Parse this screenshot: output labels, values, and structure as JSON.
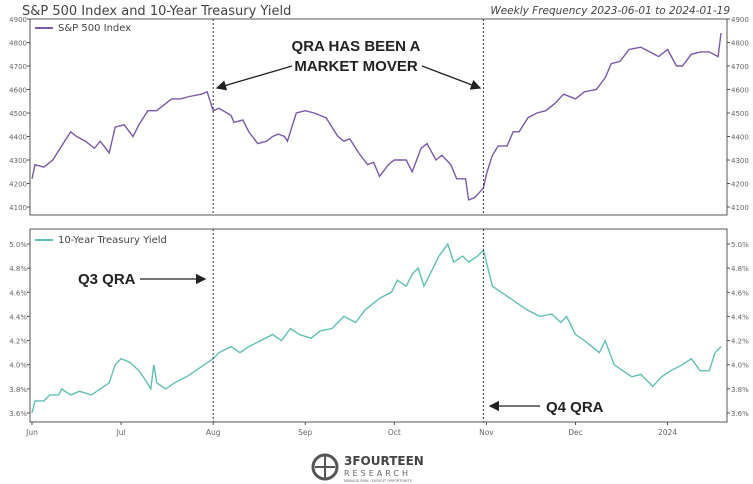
{
  "chart_data": [
    {
      "type": "line",
      "title": "S&P 500 Index and 10-Year Treasury Yield",
      "subtitle": "Weekly Frequency 2023-06-01 to 2024-01-19",
      "x_unit": "days since 2023-06-01",
      "ylim": [
        4100,
        4900
      ],
      "yticks": [
        "4100",
        "4200",
        "4300",
        "4400",
        "4500",
        "4600",
        "4700",
        "4800",
        "4900"
      ],
      "legend": "top-left",
      "series": [
        {
          "name": "S&P 500 Index",
          "color": "#7b58a8",
          "x": [
            0,
            1,
            4,
            7,
            9,
            13,
            15,
            18,
            21,
            23,
            26,
            28,
            31,
            34,
            36,
            39,
            42,
            45,
            47,
            50,
            53,
            57,
            59,
            61,
            63,
            67,
            68,
            71,
            73,
            76,
            79,
            81,
            83,
            85,
            86,
            89,
            92,
            95,
            99,
            100,
            103,
            105,
            107,
            110,
            113,
            115,
            117,
            120,
            122,
            126,
            128,
            131,
            133,
            136,
            138,
            141,
            143,
            146,
            147,
            149,
            152,
            153,
            155,
            157,
            160,
            162,
            164,
            167,
            170,
            173,
            176,
            179,
            183,
            186,
            190,
            193,
            195,
            198,
            201,
            205,
            208,
            211,
            214,
            217,
            219,
            222,
            225,
            228,
            231,
            232
          ],
          "y": [
            4220,
            4280,
            4270,
            4300,
            4340,
            4420,
            4400,
            4380,
            4350,
            4380,
            4330,
            4440,
            4450,
            4400,
            4450,
            4510,
            4510,
            4540,
            4560,
            4560,
            4570,
            4580,
            4590,
            4510,
            4520,
            4490,
            4460,
            4470,
            4420,
            4370,
            4380,
            4400,
            4410,
            4400,
            4380,
            4500,
            4510,
            4500,
            4480,
            4460,
            4400,
            4380,
            4390,
            4330,
            4280,
            4290,
            4230,
            4280,
            4300,
            4300,
            4250,
            4350,
            4370,
            4300,
            4320,
            4280,
            4220,
            4220,
            4130,
            4140,
            4180,
            4240,
            4320,
            4360,
            4360,
            4420,
            4420,
            4480,
            4500,
            4510,
            4540,
            4580,
            4560,
            4590,
            4600,
            4650,
            4710,
            4720,
            4770,
            4780,
            4760,
            4740,
            4770,
            4700,
            4700,
            4750,
            4760,
            4760,
            4740,
            4840
          ]
        }
      ],
      "annotations": [
        "QRA HAS BEEN A",
        "MARKET MOVER"
      ]
    },
    {
      "type": "line",
      "xticks": [
        "Jun",
        "Jul",
        "Aug",
        "Sep",
        "Oct",
        "Nov",
        "Dec",
        "2024"
      ],
      "xtick_days": [
        0,
        30,
        61,
        92,
        122,
        153,
        183,
        214
      ],
      "x_unit": "days since 2023-06-01",
      "ylim": [
        3.6,
        5.0
      ],
      "yticks": [
        "3.6%",
        "3.8%",
        "4.0%",
        "4.2%",
        "4.4%",
        "4.6%",
        "4.8%",
        "5.0%"
      ],
      "legend": "top-left",
      "series": [
        {
          "name": "10-Year Treasury Yield",
          "color": "#5fbfb5",
          "x": [
            0,
            1,
            4,
            6,
            9,
            10,
            13,
            16,
            20,
            23,
            26,
            28,
            30,
            33,
            36,
            38,
            40,
            41,
            42,
            45,
            48,
            52,
            55,
            58,
            61,
            63,
            67,
            70,
            73,
            77,
            81,
            84,
            87,
            90,
            94,
            97,
            101,
            105,
            109,
            112,
            117,
            121,
            123,
            126,
            128,
            130,
            132,
            134,
            137,
            140,
            142,
            145,
            147,
            150,
            152,
            153,
            155,
            158,
            161,
            164,
            167,
            171,
            175,
            178,
            180,
            183,
            186,
            191,
            193,
            196,
            199,
            202,
            205,
            209,
            212,
            215,
            219,
            222,
            225,
            228,
            230,
            232
          ],
          "y": [
            3.6,
            3.7,
            3.7,
            3.75,
            3.75,
            3.8,
            3.75,
            3.78,
            3.75,
            3.8,
            3.85,
            4.0,
            4.05,
            4.02,
            3.95,
            3.88,
            3.8,
            4.0,
            3.85,
            3.8,
            3.85,
            3.9,
            3.95,
            4.0,
            4.05,
            4.1,
            4.15,
            4.1,
            4.15,
            4.2,
            4.25,
            4.2,
            4.3,
            4.25,
            4.22,
            4.28,
            4.3,
            4.4,
            4.35,
            4.45,
            4.55,
            4.6,
            4.7,
            4.65,
            4.75,
            4.8,
            4.65,
            4.75,
            4.9,
            5.0,
            4.85,
            4.9,
            4.85,
            4.9,
            4.95,
            4.85,
            4.65,
            4.6,
            4.55,
            4.5,
            4.45,
            4.4,
            4.42,
            4.35,
            4.4,
            4.25,
            4.2,
            4.1,
            4.2,
            4.0,
            3.95,
            3.9,
            3.92,
            3.82,
            3.9,
            3.95,
            4.0,
            4.05,
            3.95,
            3.95,
            4.1,
            4.15
          ]
        }
      ],
      "annotations": [
        "Q3 QRA",
        "Q4 QRA"
      ]
    }
  ],
  "qra_dates_days": [
    61,
    152
  ],
  "logo": {
    "name": "3FOURTEEN",
    "sub": "RESEARCH",
    "tagline": "MANAGE RISK · EXPLOIT OPPORTUNITY"
  }
}
